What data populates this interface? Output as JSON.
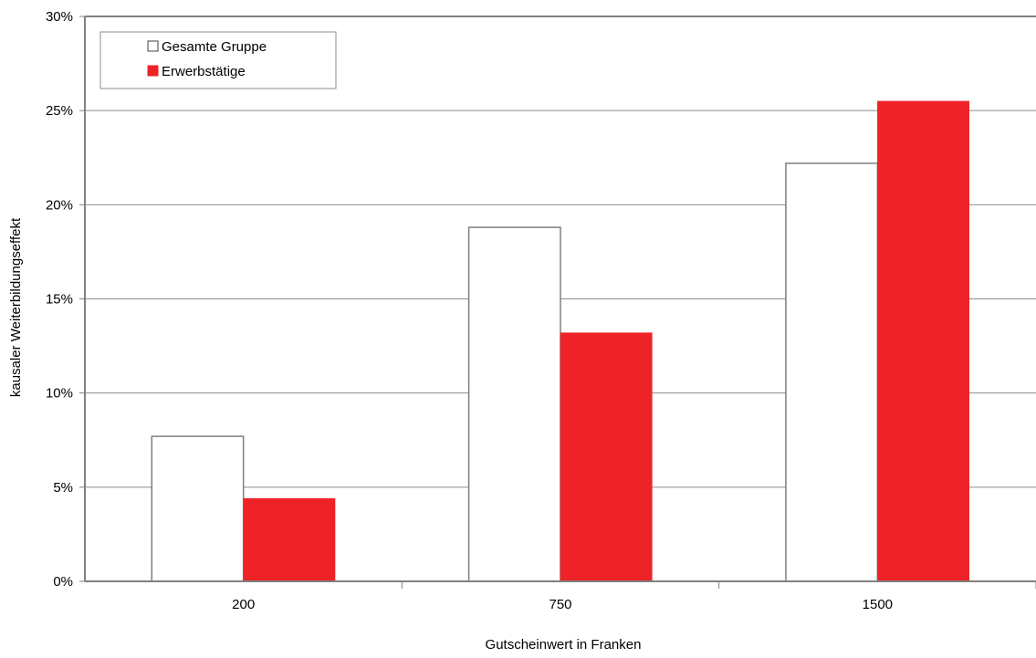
{
  "chart_data": {
    "type": "bar",
    "xlabel": "Gutscheinwert in Franken",
    "ylabel": "kausaler Weiterbildungseffekt",
    "categories": [
      "200",
      "750",
      "1500"
    ],
    "yticks": [
      "0%",
      "5%",
      "10%",
      "15%",
      "20%",
      "25%",
      "30%"
    ],
    "ylim": [
      0,
      30
    ],
    "grid": true,
    "legend_position": "top-left",
    "series": [
      {
        "name": "Gesamte Gruppe",
        "values": [
          7.7,
          18.8,
          22.2
        ],
        "color": "#ffffff",
        "stroke": "#7f7f7f"
      },
      {
        "name": "Erwerbstätige",
        "values": [
          4.4,
          13.2,
          25.5
        ],
        "color": "#ee2327",
        "stroke": "#ee2327"
      }
    ]
  }
}
